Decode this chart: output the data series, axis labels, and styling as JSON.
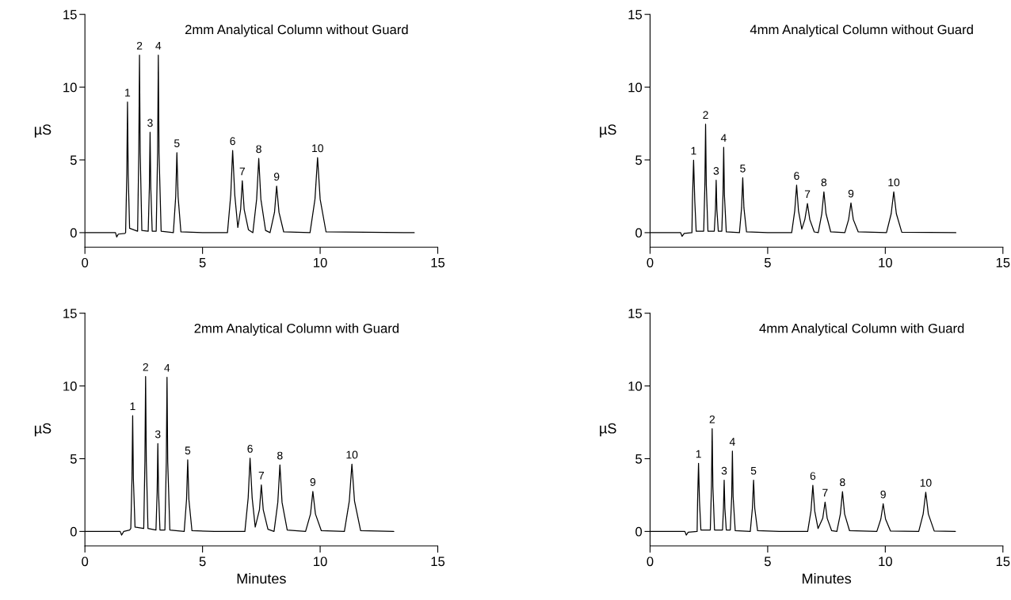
{
  "chart_data": [
    {
      "type": "line",
      "title": "2mm Analytical Column without Guard",
      "ylabel": "µS",
      "xlim": [
        0,
        15
      ],
      "ylim": [
        -1,
        15
      ],
      "xticks": [
        0,
        5,
        10,
        15
      ],
      "yticks": [
        0,
        5,
        10,
        15
      ],
      "grid": false,
      "legend": false,
      "marker": "none",
      "line_style": "solid",
      "series": [
        {
          "color": "#000000",
          "x": [
            0,
            1.3,
            1.35,
            1.42,
            1.7,
            1.73,
            1.78,
            1.81,
            1.84,
            1.9,
            2.24,
            2.29,
            2.32,
            2.35,
            2.42,
            2.69,
            2.74,
            2.77,
            2.8,
            2.86,
            3.03,
            3.09,
            3.12,
            3.15,
            3.24,
            3.76,
            3.86,
            3.91,
            3.96,
            4.08,
            5.0,
            6.06,
            6.2,
            6.28,
            6.37,
            6.5,
            6.62,
            6.69,
            6.77,
            6.95,
            7.14,
            7.3,
            7.39,
            7.48,
            7.68,
            7.87,
            8.06,
            8.15,
            8.25,
            8.45,
            9.57,
            9.78,
            9.89,
            10.0,
            10.25,
            14.0
          ],
          "values": [
            0,
            0,
            -0.3,
            -0.1,
            -0.05,
            0,
            4,
            8.98,
            4,
            0.3,
            0.1,
            5.5,
            12.2,
            5.5,
            0.15,
            0.1,
            3.1,
            6.9,
            3.1,
            0.1,
            0.1,
            5.5,
            12.2,
            5.5,
            0.1,
            0,
            2.5,
            5.5,
            2.5,
            0.05,
            0,
            0,
            2.6,
            5.65,
            2.6,
            0.35,
            1.6,
            3.57,
            1.6,
            0.2,
            0,
            2.3,
            5.1,
            2.3,
            0.15,
            0,
            1.4,
            3.2,
            1.4,
            0.05,
            0,
            2.3,
            5.16,
            2.3,
            0.05,
            0
          ]
        }
      ],
      "annotations": [
        {
          "text": "1",
          "x": 1.81,
          "y": 8.98
        },
        {
          "text": "2",
          "x": 2.32,
          "y": 12.2
        },
        {
          "text": "3",
          "x": 2.77,
          "y": 6.9
        },
        {
          "text": "4",
          "x": 3.12,
          "y": 12.2
        },
        {
          "text": "5",
          "x": 3.91,
          "y": 5.5
        },
        {
          "text": "6",
          "x": 6.28,
          "y": 5.65
        },
        {
          "text": "7",
          "x": 6.69,
          "y": 3.57
        },
        {
          "text": "8",
          "x": 7.39,
          "y": 5.1
        },
        {
          "text": "9",
          "x": 8.15,
          "y": 3.2
        },
        {
          "text": "10",
          "x": 9.89,
          "y": 5.16
        }
      ]
    },
    {
      "type": "line",
      "title": "4mm Analytical Column without Guard",
      "ylabel": "µS",
      "xlim": [
        0,
        15
      ],
      "ylim": [
        -1,
        15
      ],
      "xticks": [
        0,
        5,
        10,
        15
      ],
      "yticks": [
        0,
        5,
        10,
        15
      ],
      "grid": false,
      "legend": false,
      "marker": "none",
      "line_style": "solid",
      "series": [
        {
          "color": "#000000",
          "x": [
            0,
            1.3,
            1.36,
            1.45,
            1.78,
            1.8,
            1.85,
            1.9,
            1.96,
            2.28,
            2.33,
            2.36,
            2.39,
            2.46,
            2.73,
            2.78,
            2.81,
            2.84,
            2.9,
            3.05,
            3.1,
            3.13,
            3.16,
            3.24,
            3.8,
            3.89,
            3.94,
            3.99,
            4.1,
            5.0,
            6.02,
            6.15,
            6.23,
            6.31,
            6.45,
            6.58,
            6.69,
            6.79,
            6.98,
            7.15,
            7.3,
            7.39,
            7.48,
            7.68,
            8.28,
            8.44,
            8.54,
            8.64,
            8.85,
            10.05,
            10.25,
            10.36,
            10.47,
            10.7,
            13.0
          ],
          "values": [
            0,
            0,
            -0.25,
            -0.05,
            0,
            2.2,
            4.98,
            2.2,
            0.1,
            0.1,
            3.3,
            7.45,
            3.3,
            0.1,
            0.1,
            1.6,
            3.6,
            1.6,
            0.1,
            0.1,
            2.6,
            5.87,
            2.6,
            0.05,
            0,
            1.7,
            3.77,
            1.7,
            0.05,
            0,
            0,
            1.5,
            3.26,
            1.5,
            0.25,
            0.9,
            2.0,
            0.9,
            0.05,
            0,
            1.3,
            2.81,
            1.3,
            0.05,
            0,
            0.9,
            2.04,
            0.9,
            0.05,
            0,
            1.3,
            2.81,
            1.3,
            0.03,
            0
          ]
        }
      ],
      "annotations": [
        {
          "text": "1",
          "x": 1.85,
          "y": 4.98
        },
        {
          "text": "2",
          "x": 2.36,
          "y": 7.45
        },
        {
          "text": "3",
          "x": 2.81,
          "y": 3.6
        },
        {
          "text": "4",
          "x": 3.13,
          "y": 5.87
        },
        {
          "text": "5",
          "x": 3.94,
          "y": 3.77
        },
        {
          "text": "6",
          "x": 6.23,
          "y": 3.26
        },
        {
          "text": "7",
          "x": 6.69,
          "y": 2.0
        },
        {
          "text": "8",
          "x": 7.39,
          "y": 2.81
        },
        {
          "text": "9",
          "x": 8.54,
          "y": 2.04
        },
        {
          "text": "10",
          "x": 10.36,
          "y": 2.81
        }
      ]
    },
    {
      "type": "line",
      "title": "2mm Analytical Column with Guard",
      "xlabel": "Minutes",
      "ylabel": "µS",
      "xlim": [
        0,
        15
      ],
      "ylim": [
        -1,
        15
      ],
      "xticks": [
        0,
        5,
        10,
        15
      ],
      "yticks": [
        0,
        5,
        10,
        15
      ],
      "grid": false,
      "legend": false,
      "marker": "none",
      "line_style": "solid",
      "series": [
        {
          "color": "#000000",
          "x": [
            0,
            1.5,
            1.56,
            1.65,
            1.9,
            1.95,
            2.0,
            2.03,
            2.06,
            2.13,
            2.5,
            2.55,
            2.58,
            2.61,
            2.68,
            3.02,
            3.07,
            3.1,
            3.13,
            3.19,
            3.4,
            3.46,
            3.49,
            3.52,
            3.61,
            4.22,
            4.32,
            4.37,
            4.42,
            4.55,
            5.5,
            6.8,
            6.94,
            7.02,
            7.11,
            7.24,
            7.42,
            7.5,
            7.58,
            7.78,
            8.04,
            8.2,
            8.29,
            8.38,
            8.6,
            9.38,
            9.59,
            9.69,
            9.8,
            10.05,
            11.03,
            11.24,
            11.35,
            11.46,
            11.72,
            13.13
          ],
          "values": [
            0,
            0,
            -0.25,
            0,
            0.1,
            0.2,
            3.6,
            7.96,
            3.6,
            0.3,
            0.2,
            4.8,
            10.65,
            4.8,
            0.2,
            0.1,
            2.7,
            6.04,
            2.7,
            0.1,
            0.1,
            4.8,
            10.6,
            4.8,
            0.1,
            0,
            2.2,
            4.92,
            2.2,
            0.05,
            0,
            0,
            2.3,
            5.04,
            2.3,
            0.3,
            1.5,
            3.2,
            1.5,
            0.15,
            0,
            2.0,
            4.57,
            2.0,
            0.1,
            0,
            1.2,
            2.75,
            1.2,
            0.05,
            0,
            2.1,
            4.63,
            2.1,
            0.05,
            0
          ]
        }
      ],
      "annotations": [
        {
          "text": "1",
          "x": 2.03,
          "y": 7.96
        },
        {
          "text": "2",
          "x": 2.58,
          "y": 10.65
        },
        {
          "text": "3",
          "x": 3.1,
          "y": 6.04
        },
        {
          "text": "4",
          "x": 3.49,
          "y": 10.6
        },
        {
          "text": "5",
          "x": 4.37,
          "y": 4.92
        },
        {
          "text": "6",
          "x": 7.02,
          "y": 5.04
        },
        {
          "text": "7",
          "x": 7.5,
          "y": 3.2
        },
        {
          "text": "8",
          "x": 8.29,
          "y": 4.57
        },
        {
          "text": "9",
          "x": 9.69,
          "y": 2.75
        },
        {
          "text": "10",
          "x": 11.35,
          "y": 4.63
        }
      ]
    },
    {
      "type": "line",
      "title": "4mm Analytical Column with Guard",
      "xlabel": "Minutes",
      "ylabel": "µS",
      "xlim": [
        0,
        15
      ],
      "ylim": [
        -1,
        15
      ],
      "xticks": [
        0,
        5,
        10,
        15
      ],
      "yticks": [
        0,
        5,
        10,
        15
      ],
      "grid": false,
      "legend": false,
      "marker": "none",
      "line_style": "solid",
      "series": [
        {
          "color": "#000000",
          "x": [
            0,
            1.48,
            1.54,
            1.62,
            2.0,
            2.02,
            2.06,
            2.1,
            2.16,
            2.56,
            2.61,
            2.64,
            2.67,
            2.74,
            3.08,
            3.12,
            3.15,
            3.18,
            3.24,
            3.41,
            3.47,
            3.5,
            3.53,
            3.62,
            4.26,
            4.35,
            4.4,
            4.45,
            4.57,
            5.5,
            6.7,
            6.84,
            6.92,
            7.0,
            7.14,
            7.34,
            7.44,
            7.53,
            7.72,
            7.94,
            8.09,
            8.18,
            8.27,
            8.48,
            9.64,
            9.81,
            9.91,
            10.01,
            10.22,
            11.42,
            11.61,
            11.72,
            11.83,
            12.08,
            12.98
          ],
          "values": [
            0,
            0,
            -0.25,
            -0.05,
            0,
            2.1,
            4.68,
            2.1,
            0.1,
            0.1,
            3.1,
            7.06,
            3.1,
            0.1,
            0.1,
            1.6,
            3.53,
            1.6,
            0.1,
            0.1,
            2.4,
            5.52,
            2.4,
            0.05,
            0,
            1.6,
            3.53,
            1.6,
            0.05,
            0,
            0,
            1.4,
            3.17,
            1.4,
            0.2,
            0.9,
            2.02,
            0.9,
            0.05,
            0,
            1.2,
            2.74,
            1.2,
            0.05,
            0,
            0.85,
            1.9,
            0.85,
            0.03,
            0,
            1.2,
            2.7,
            1.2,
            0.03,
            0
          ]
        }
      ],
      "annotations": [
        {
          "text": "1",
          "x": 2.06,
          "y": 4.68
        },
        {
          "text": "2",
          "x": 2.64,
          "y": 7.06
        },
        {
          "text": "3",
          "x": 3.15,
          "y": 3.53
        },
        {
          "text": "4",
          "x": 3.5,
          "y": 5.52
        },
        {
          "text": "5",
          "x": 4.4,
          "y": 3.53
        },
        {
          "text": "6",
          "x": 6.92,
          "y": 3.17
        },
        {
          "text": "7",
          "x": 7.44,
          "y": 2.02
        },
        {
          "text": "8",
          "x": 8.18,
          "y": 2.74
        },
        {
          "text": "9",
          "x": 9.91,
          "y": 1.9
        },
        {
          "text": "10",
          "x": 11.72,
          "y": 2.7
        }
      ]
    }
  ]
}
